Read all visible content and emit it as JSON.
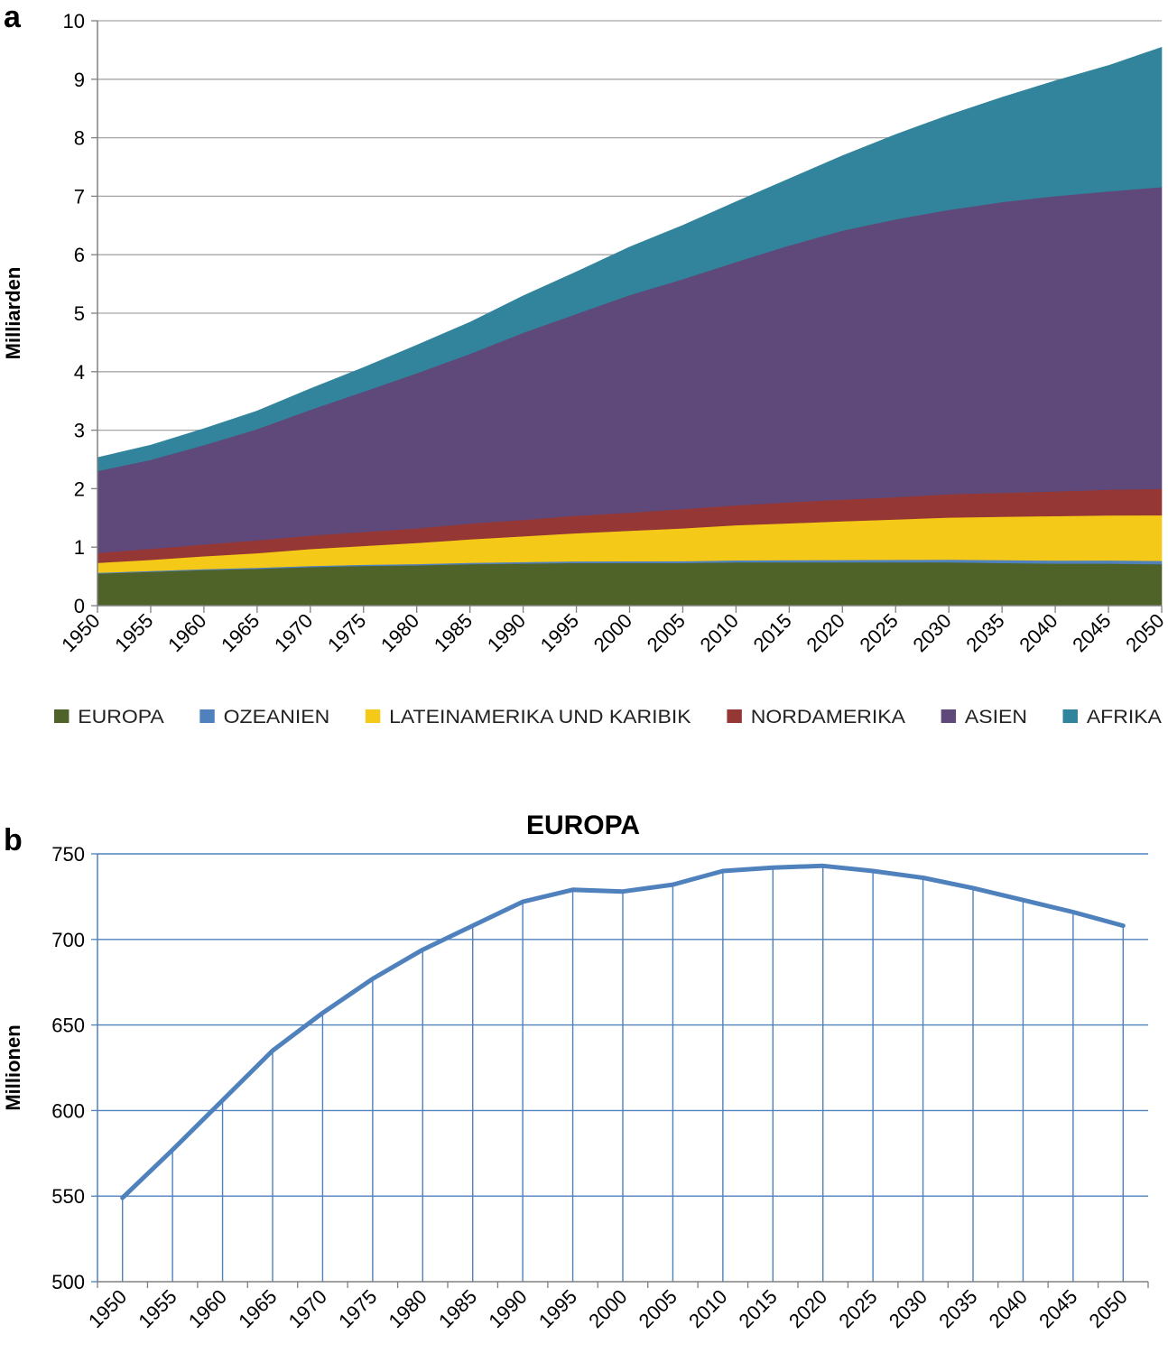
{
  "chart_data": [
    {
      "panel": "a",
      "type": "area",
      "stacked": true,
      "ylabel": "Milliarden",
      "ylim": [
        0,
        10
      ],
      "yticks": [
        0,
        1,
        2,
        3,
        4,
        5,
        6,
        7,
        8,
        9,
        10
      ],
      "x": [
        1950,
        1955,
        1960,
        1965,
        1970,
        1975,
        1980,
        1985,
        1990,
        1995,
        2000,
        2005,
        2010,
        2015,
        2020,
        2025,
        2030,
        2035,
        2040,
        2045,
        2050
      ],
      "series": [
        {
          "name": "EUROPA",
          "color": "#4f6228",
          "values": [
            0.55,
            0.58,
            0.61,
            0.63,
            0.66,
            0.68,
            0.69,
            0.71,
            0.72,
            0.73,
            0.73,
            0.73,
            0.74,
            0.74,
            0.74,
            0.74,
            0.74,
            0.73,
            0.72,
            0.72,
            0.71
          ]
        },
        {
          "name": "OZEANIEN",
          "color": "#4f81bd",
          "values": [
            0.013,
            0.014,
            0.016,
            0.018,
            0.019,
            0.021,
            0.023,
            0.025,
            0.027,
            0.029,
            0.031,
            0.033,
            0.036,
            0.039,
            0.043,
            0.046,
            0.048,
            0.051,
            0.053,
            0.055,
            0.057
          ]
        },
        {
          "name": "LATEINAMERIKA UND KARIBIK",
          "color": "#f5c918",
          "values": [
            0.17,
            0.19,
            0.22,
            0.25,
            0.29,
            0.32,
            0.36,
            0.4,
            0.44,
            0.48,
            0.52,
            0.56,
            0.6,
            0.63,
            0.66,
            0.69,
            0.72,
            0.74,
            0.76,
            0.77,
            0.78
          ]
        },
        {
          "name": "NORDAMERIKA",
          "color": "#953735",
          "values": [
            0.17,
            0.19,
            0.2,
            0.22,
            0.23,
            0.24,
            0.25,
            0.27,
            0.28,
            0.3,
            0.31,
            0.33,
            0.34,
            0.36,
            0.37,
            0.38,
            0.4,
            0.41,
            0.42,
            0.44,
            0.45
          ]
        },
        {
          "name": "ASIEN",
          "color": "#5f497a",
          "values": [
            1.4,
            1.52,
            1.7,
            1.9,
            2.15,
            2.4,
            2.65,
            2.9,
            3.2,
            3.45,
            3.72,
            3.93,
            4.16,
            4.39,
            4.6,
            4.75,
            4.86,
            4.97,
            5.05,
            5.1,
            5.16
          ]
        },
        {
          "name": "AFRIKA",
          "color": "#31849b",
          "values": [
            0.23,
            0.25,
            0.28,
            0.31,
            0.36,
            0.41,
            0.48,
            0.54,
            0.63,
            0.72,
            0.82,
            0.92,
            1.03,
            1.14,
            1.28,
            1.45,
            1.62,
            1.79,
            1.97,
            2.15,
            2.39
          ]
        }
      ]
    },
    {
      "panel": "b",
      "type": "line",
      "title": "EUROPA",
      "ylabel": "Millionen",
      "ylim": [
        500,
        750
      ],
      "yticks": [
        500,
        550,
        600,
        650,
        700,
        750
      ],
      "x": [
        1950,
        1955,
        1960,
        1965,
        1970,
        1975,
        1980,
        1985,
        1990,
        1995,
        2000,
        2005,
        2010,
        2015,
        2020,
        2025,
        2030,
        2035,
        2040,
        2045,
        2050
      ],
      "series": [
        {
          "name": "EUROPA",
          "color": "#4f81bd",
          "values": [
            549,
            577,
            606,
            635,
            657,
            677,
            694,
            708,
            722,
            729,
            728,
            732,
            740,
            742,
            743,
            740,
            736,
            730,
            723,
            716,
            708
          ]
        }
      ]
    }
  ],
  "panel_labels": {
    "a": "a",
    "b": "b"
  }
}
